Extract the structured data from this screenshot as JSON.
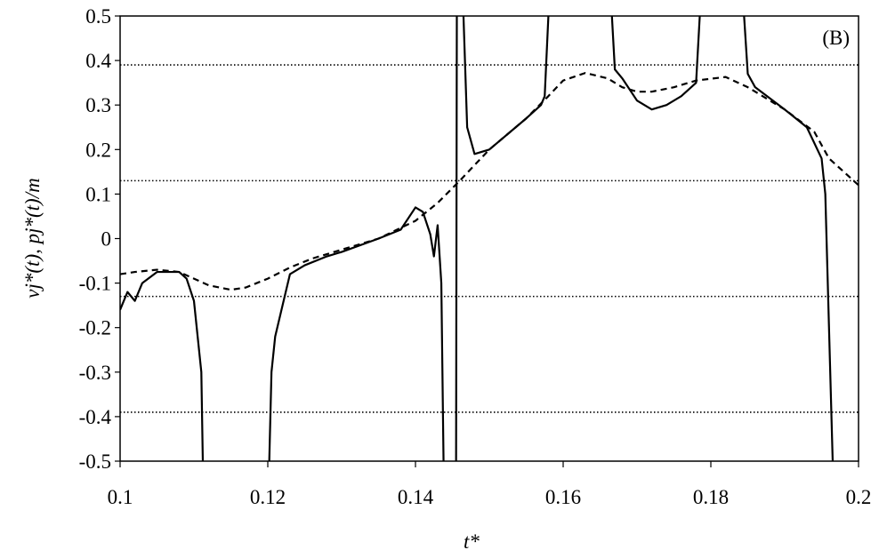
{
  "chart_data": {
    "type": "line",
    "annotation": "(B)",
    "xlabel": "t*",
    "ylabel": "vj*(t), pj*(t)/m",
    "xlim": [
      0.1,
      0.2
    ],
    "xticks": [
      0.1,
      0.12,
      0.14,
      0.16,
      0.18,
      0.2
    ],
    "ylim": [
      -0.5,
      0.5
    ],
    "yticks": [
      0.5,
      0.4,
      0.3,
      0.2,
      0.1,
      0,
      -0.1,
      -0.2,
      -0.3,
      -0.4,
      -0.5
    ],
    "hlines": [
      0.39,
      0.13,
      -0.13,
      -0.39
    ],
    "series": [
      {
        "color": "#000000",
        "style": "solid",
        "x": [
          0.1,
          0.101,
          0.102,
          0.103,
          0.105,
          0.108,
          0.109,
          0.11,
          0.1105,
          0.111,
          0.1112,
          null,
          0.1202,
          0.1205,
          0.121,
          0.122,
          0.123,
          0.125,
          0.128,
          0.13,
          0.135,
          0.138,
          0.14,
          0.141,
          0.142,
          0.1425,
          0.143,
          0.1435,
          0.1438,
          null,
          0.1455,
          0.1456,
          null,
          0.1465,
          0.147,
          0.148,
          0.15,
          0.155,
          0.157,
          0.1575,
          0.158,
          null,
          0.1666,
          0.167,
          0.168,
          0.17,
          0.172,
          0.174,
          0.176,
          0.178,
          0.1785,
          null,
          0.1845,
          0.185,
          0.186,
          0.19,
          0.193,
          0.195,
          0.1955,
          0.196,
          0.1965
        ],
        "values": [
          -0.16,
          -0.12,
          -0.14,
          -0.1,
          -0.075,
          -0.075,
          -0.09,
          -0.14,
          -0.22,
          -0.3,
          -0.5,
          null,
          -0.5,
          -0.3,
          -0.22,
          -0.15,
          -0.08,
          -0.06,
          -0.04,
          -0.03,
          0.0,
          0.02,
          0.07,
          0.06,
          0.01,
          -0.04,
          0.03,
          -0.1,
          -0.5,
          null,
          -0.5,
          0.5,
          null,
          0.5,
          0.25,
          0.19,
          0.2,
          0.27,
          0.3,
          0.32,
          0.5,
          null,
          0.5,
          0.38,
          0.36,
          0.31,
          0.29,
          0.3,
          0.32,
          0.35,
          0.5,
          null,
          0.5,
          0.37,
          0.34,
          0.29,
          0.25,
          0.18,
          0.1,
          -0.2,
          -0.5
        ]
      },
      {
        "color": "#000000",
        "style": "dashed",
        "x": [
          0.1,
          0.102,
          0.105,
          0.108,
          0.11,
          0.112,
          0.115,
          0.117,
          0.12,
          0.123,
          0.126,
          0.13,
          0.135,
          0.14,
          0.143,
          0.146,
          0.15,
          0.155,
          0.158,
          0.16,
          0.163,
          0.166,
          0.168,
          0.17,
          0.172,
          0.175,
          0.178,
          0.182,
          0.185,
          0.19,
          0.194,
          0.196,
          0.2
        ],
        "values": [
          -0.08,
          -0.075,
          -0.07,
          -0.075,
          -0.09,
          -0.105,
          -0.115,
          -0.11,
          -0.09,
          -0.065,
          -0.045,
          -0.025,
          0.0,
          0.04,
          0.08,
          0.13,
          0.2,
          0.27,
          0.32,
          0.355,
          0.372,
          0.36,
          0.34,
          0.33,
          0.33,
          0.34,
          0.355,
          0.363,
          0.34,
          0.29,
          0.24,
          0.18,
          0.12
        ]
      }
    ]
  }
}
